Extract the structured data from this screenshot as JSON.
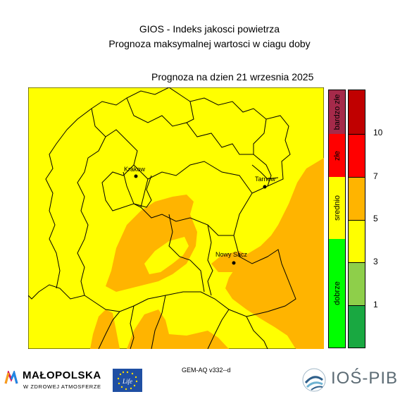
{
  "header": {
    "title_line1": "GIOS - Indeks jakosci powietrza",
    "title_line2": "Prognoza maksymalnej wartosci w ciagu doby",
    "forecast_date": "Prognoza na dzien  21 wrzesnia 2025"
  },
  "map": {
    "cities": [
      {
        "name": "Krakow",
        "id": "krakow"
      },
      {
        "name": "Tarnow",
        "id": "tarnow"
      },
      {
        "name": "Nowy Sacz",
        "id": "nowy-sacz"
      }
    ],
    "colors": {
      "background_level": "#ffff00",
      "medium_high_level": "#ffb400",
      "border": "#000000"
    }
  },
  "legend": {
    "categories": [
      {
        "label": "bardzo złe",
        "color": "#a52a4a"
      },
      {
        "label": "złe",
        "color": "#ff0000"
      },
      {
        "label": "srednio",
        "color": "#ffff00"
      },
      {
        "label": "dobrze",
        "color": "#00ff00"
      }
    ],
    "scale_colors": [
      "#c00000",
      "#ff0000",
      "#ffb400",
      "#ffff00",
      "#8ecf4a",
      "#19a841"
    ],
    "ticks": [
      "10",
      "7",
      "5",
      "3",
      "1"
    ]
  },
  "footer": {
    "model_label": "GEM-AQ v332--d",
    "malopolska_name": "MAŁOPOLSKA",
    "malopolska_tagline": "W ZDROWEJ ATMOSFERZE",
    "ios_name": "IOŚ-PIB"
  }
}
